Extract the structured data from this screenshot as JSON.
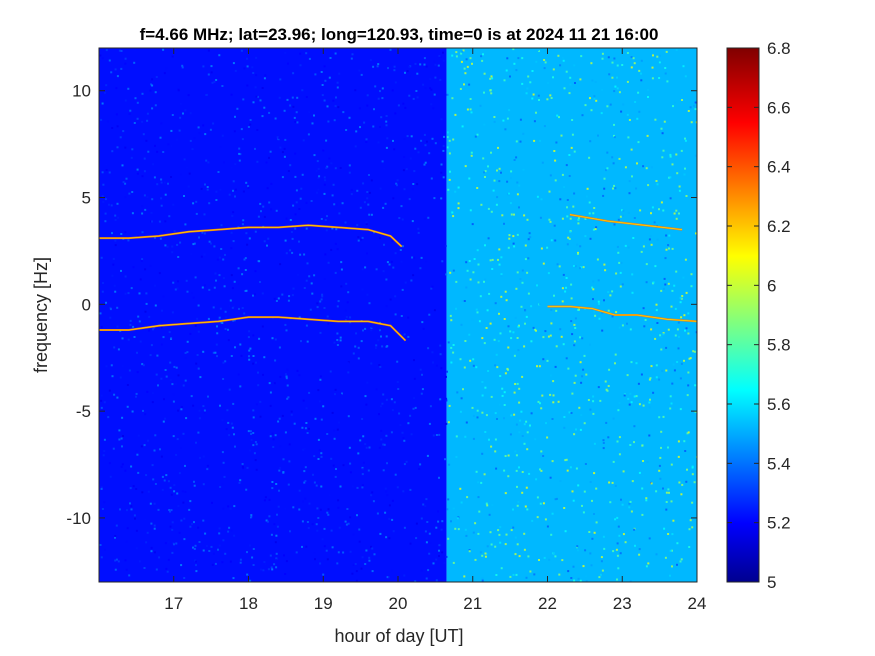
{
  "chart_data": {
    "type": "heatmap",
    "title": "f=4.66 MHz;  lat=23.96; long=120.93, time=0 is at 2024 11 21 16:00",
    "xlabel": "hour of day [UT]",
    "ylabel": "frequency [Hz]",
    "xlim": [
      16,
      24
    ],
    "ylim": [
      -13,
      12
    ],
    "xticks": [
      "17",
      "18",
      "19",
      "20",
      "21",
      "22",
      "23",
      "24"
    ],
    "yticks": [
      "-10",
      "-5",
      "0",
      "5",
      "10"
    ],
    "colorbar": {
      "colormap": "jet",
      "range": [
        5,
        6.8
      ],
      "ticks": [
        "5",
        "5.2",
        "5.4",
        "5.6",
        "5.8",
        "6",
        "6.2",
        "6.4",
        "6.6",
        "6.8"
      ]
    },
    "background_level": {
      "hours": [
        16,
        20.65,
        24
      ],
      "values_before_2065": 5.25,
      "values_after_2065": 5.55
    },
    "traces": [
      {
        "x": [
          16.0,
          16.4,
          16.8,
          17.2,
          17.6,
          18.0,
          18.4,
          18.8,
          19.2,
          19.6,
          19.9,
          20.05
        ],
        "y": [
          3.1,
          3.1,
          3.2,
          3.4,
          3.5,
          3.6,
          3.6,
          3.7,
          3.6,
          3.5,
          3.2,
          2.7
        ]
      },
      {
        "x": [
          16.0,
          16.4,
          16.8,
          17.2,
          17.6,
          18.0,
          18.4,
          18.8,
          19.2,
          19.6,
          19.9,
          20.1
        ],
        "y": [
          -1.2,
          -1.2,
          -1.0,
          -0.9,
          -0.8,
          -0.6,
          -0.6,
          -0.7,
          -0.8,
          -0.8,
          -1.0,
          -1.7
        ]
      },
      {
        "x": [
          22.0,
          22.3,
          22.6,
          22.9,
          23.2,
          23.6,
          24.0
        ],
        "y": [
          -0.1,
          -0.1,
          -0.2,
          -0.5,
          -0.5,
          -0.7,
          -0.8
        ]
      },
      {
        "x": [
          22.3,
          22.8,
          23.3,
          23.8
        ],
        "y": [
          4.2,
          3.9,
          3.7,
          3.5
        ]
      }
    ]
  }
}
